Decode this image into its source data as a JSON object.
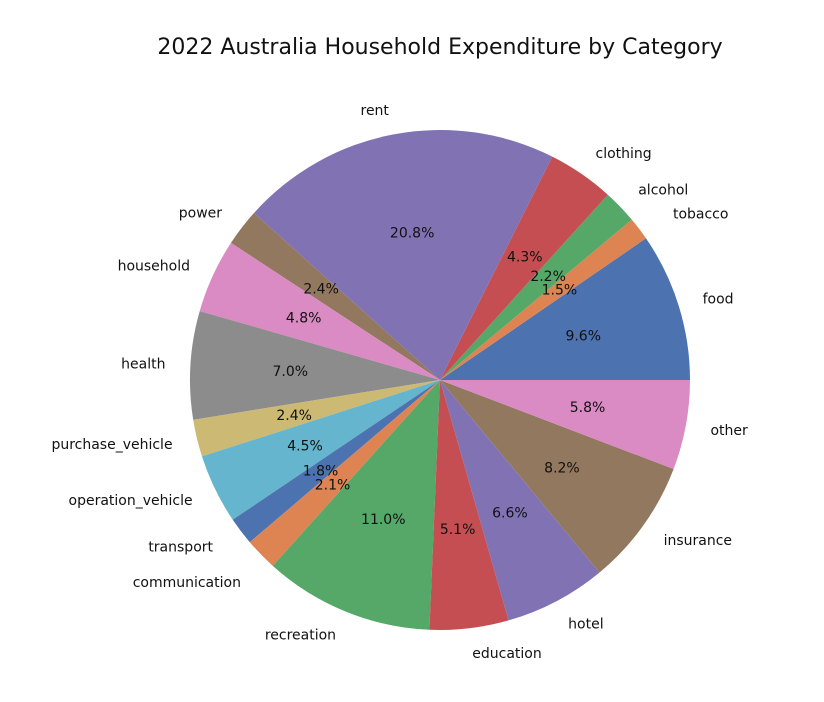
{
  "chart_data": {
    "type": "pie",
    "title": "2022 Australia Household Expenditure by Category",
    "start_angle_deg": 0,
    "direction": "counterclockwise",
    "categories": [
      "food",
      "tobacco",
      "alcohol",
      "clothing",
      "rent",
      "power",
      "household",
      "health",
      "purchase_vehicle",
      "operation_vehicle",
      "transport",
      "communication",
      "recreation",
      "education",
      "hotel",
      "insurance",
      "other"
    ],
    "values": [
      9.6,
      1.5,
      2.2,
      4.3,
      20.8,
      2.4,
      4.8,
      7.0,
      2.4,
      4.5,
      1.8,
      2.1,
      11.0,
      5.1,
      6.6,
      8.2,
      5.8
    ],
    "percent_labels": [
      "9.6%",
      "1.5%",
      "2.2%",
      "4.3%",
      "20.8%",
      "2.4%",
      "4.8%",
      "7.0%",
      "2.4%",
      "4.5%",
      "1.8%",
      "2.1%",
      "11.0%",
      "5.1%",
      "6.6%",
      "8.2%",
      "5.8%"
    ],
    "colors": [
      "#4c72b0",
      "#dd8452",
      "#55a868",
      "#c44e52",
      "#8172b3",
      "#937860",
      "#da8bc3",
      "#8c8c8c",
      "#ccb974",
      "#64b5cd",
      "#4c72b0",
      "#dd8452",
      "#55a868",
      "#c44e52",
      "#8172b3",
      "#937860",
      "#da8bc3"
    ],
    "legend": "none"
  }
}
